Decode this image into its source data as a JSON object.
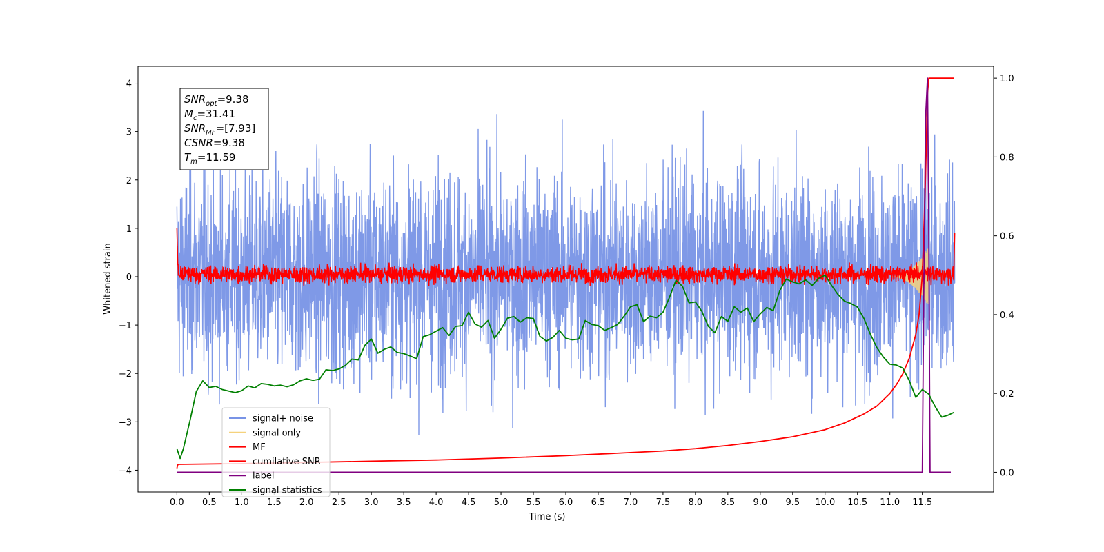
{
  "chart_data": {
    "type": "line",
    "xlabel": "Time (s)",
    "ylabel": "Whitened strain",
    "xlim": [
      -0.6,
      12.6
    ],
    "ylim": [
      -4.45,
      4.35
    ],
    "y2lim": [
      -0.05,
      1.03
    ],
    "x_ticks": [
      "0.0",
      "0.5",
      "1.0",
      "1.5",
      "2.0",
      "2.5",
      "3.0",
      "3.5",
      "4.0",
      "4.5",
      "5.0",
      "5.5",
      "6.0",
      "6.5",
      "7.0",
      "7.5",
      "8.0",
      "8.5",
      "9.0",
      "9.5",
      "10.0",
      "10.5",
      "11.0",
      "11.5"
    ],
    "y_ticks": [
      "−4",
      "−3",
      "−2",
      "−1",
      "0",
      "1",
      "2",
      "3",
      "4"
    ],
    "y2_ticks": [
      "0.0",
      "0.2",
      "0.4",
      "0.6",
      "0.8",
      "1.0"
    ],
    "info_box": [
      {
        "sym": "SNR",
        "sub": "opt",
        "rest": "=9.38"
      },
      {
        "sym": "M",
        "sub": "c",
        "rest": "=31.41"
      },
      {
        "sym": "SNR",
        "sub": "MF",
        "rest": "=[7.93]"
      },
      {
        "sym": "CSNR",
        "sub": "",
        "rest": "=9.38"
      },
      {
        "sym": "T",
        "sub": "m",
        "rest": "=11.59"
      }
    ],
    "legend_position": "lower-left",
    "legend": [
      {
        "label": "signal+ noise",
        "color": "#7893e6"
      },
      {
        "label": "signal only",
        "color": "#f5d27c"
      },
      {
        "label": "MF",
        "color": "#ff0000"
      },
      {
        "label": "cumilative SNR",
        "color": "#ff0000"
      },
      {
        "label": "label",
        "color": "#800080"
      },
      {
        "label": "signal statistics",
        "color": "#008000"
      }
    ],
    "series": [
      {
        "name": "signal+ noise",
        "axis": "left",
        "kind": "noise",
        "color": "#7893e6",
        "x_range": [
          0.0,
          12.0
        ],
        "approx_range": [
          -4.1,
          3.95
        ]
      },
      {
        "name": "signal only",
        "axis": "left",
        "kind": "chirp",
        "color": "#f5d27c",
        "x_range": [
          11.0,
          11.59
        ],
        "peak_amplitude": 0.6
      },
      {
        "name": "MF",
        "axis": "left",
        "kind": "noise",
        "color": "#ff0000",
        "x_range": [
          0.0,
          12.0
        ],
        "approx_range": [
          -0.2,
          0.5
        ]
      },
      {
        "name": "cumilative SNR",
        "axis": "right",
        "color": "#ff0000",
        "x": [
          0.0,
          0.01,
          0.02,
          1.0,
          2.0,
          3.0,
          4.0,
          5.0,
          6.0,
          7.0,
          7.5,
          8.0,
          8.5,
          9.0,
          9.5,
          10.0,
          10.3,
          10.6,
          10.8,
          11.0,
          11.1,
          11.2,
          11.3,
          11.4,
          11.45,
          11.5,
          11.55,
          11.58,
          11.6,
          11.7,
          11.8,
          11.9,
          11.99
        ],
        "y": [
          0.01,
          0.017,
          0.02,
          0.022,
          0.025,
          0.028,
          0.031,
          0.036,
          0.042,
          0.05,
          0.054,
          0.06,
          0.068,
          0.078,
          0.09,
          0.108,
          0.125,
          0.148,
          0.168,
          0.2,
          0.222,
          0.25,
          0.29,
          0.35,
          0.4,
          0.5,
          0.75,
          0.96,
          1.0,
          1.0,
          1.0,
          1.0,
          1.0
        ]
      },
      {
        "name": "label",
        "axis": "right",
        "color": "#800080",
        "x": [
          0.0,
          11.45,
          11.5,
          11.52,
          11.55,
          11.58,
          11.6,
          11.62,
          11.65,
          11.94
        ],
        "y": [
          0.0,
          0.0,
          0.0,
          0.4,
          0.9,
          1.0,
          0.6,
          0.0,
          0.0,
          0.0
        ]
      },
      {
        "name": "signal statistics",
        "axis": "right",
        "color": "#008000",
        "x": [
          0.0,
          0.05,
          0.1,
          0.2,
          0.3,
          0.4,
          0.5,
          0.6,
          0.7,
          0.8,
          0.9,
          1.0,
          1.1,
          1.2,
          1.3,
          1.4,
          1.5,
          1.6,
          1.7,
          1.8,
          1.9,
          2.0,
          2.1,
          2.2,
          2.3,
          2.4,
          2.5,
          2.6,
          2.7,
          2.8,
          2.9,
          3.0,
          3.1,
          3.2,
          3.3,
          3.4,
          3.5,
          3.6,
          3.7,
          3.8,
          3.9,
          4.0,
          4.1,
          4.2,
          4.3,
          4.4,
          4.5,
          4.6,
          4.7,
          4.8,
          4.9,
          5.0,
          5.1,
          5.2,
          5.3,
          5.4,
          5.5,
          5.6,
          5.7,
          5.8,
          5.9,
          6.0,
          6.1,
          6.2,
          6.3,
          6.4,
          6.5,
          6.6,
          6.7,
          6.8,
          6.9,
          7.0,
          7.1,
          7.2,
          7.3,
          7.4,
          7.5,
          7.6,
          7.7,
          7.8,
          7.9,
          8.0,
          8.1,
          8.2,
          8.3,
          8.4,
          8.5,
          8.6,
          8.7,
          8.8,
          8.9,
          9.0,
          9.1,
          9.2,
          9.3,
          9.4,
          9.5,
          9.6,
          9.7,
          9.8,
          9.9,
          10.0,
          10.1,
          10.2,
          10.3,
          10.4,
          10.5,
          10.6,
          10.7,
          10.8,
          10.9,
          11.0,
          11.1,
          11.2,
          11.3,
          11.4,
          11.5,
          11.6,
          11.7,
          11.8,
          11.9,
          11.99
        ],
        "y": [
          0.06,
          0.035,
          0.06,
          0.13,
          0.205,
          0.232,
          0.215,
          0.218,
          0.21,
          0.206,
          0.202,
          0.207,
          0.219,
          0.214,
          0.225,
          0.223,
          0.219,
          0.221,
          0.217,
          0.222,
          0.232,
          0.237,
          0.233,
          0.236,
          0.26,
          0.258,
          0.262,
          0.271,
          0.287,
          0.285,
          0.322,
          0.338,
          0.302,
          0.312,
          0.318,
          0.304,
          0.301,
          0.295,
          0.288,
          0.344,
          0.349,
          0.358,
          0.367,
          0.347,
          0.37,
          0.372,
          0.406,
          0.376,
          0.368,
          0.385,
          0.34,
          0.363,
          0.391,
          0.395,
          0.381,
          0.392,
          0.39,
          0.345,
          0.333,
          0.342,
          0.36,
          0.34,
          0.336,
          0.338,
          0.385,
          0.375,
          0.372,
          0.36,
          0.367,
          0.375,
          0.396,
          0.42,
          0.425,
          0.382,
          0.396,
          0.392,
          0.406,
          0.444,
          0.487,
          0.472,
          0.43,
          0.432,
          0.408,
          0.37,
          0.354,
          0.395,
          0.383,
          0.42,
          0.406,
          0.417,
          0.382,
          0.402,
          0.418,
          0.41,
          0.46,
          0.49,
          0.483,
          0.478,
          0.488,
          0.474,
          0.492,
          0.5,
          0.474,
          0.451,
          0.434,
          0.428,
          0.419,
          0.39,
          0.35,
          0.316,
          0.292,
          0.274,
          0.272,
          0.264,
          0.232,
          0.19,
          0.21,
          0.198,
          0.166,
          0.14,
          0.145,
          0.152
        ]
      }
    ]
  }
}
